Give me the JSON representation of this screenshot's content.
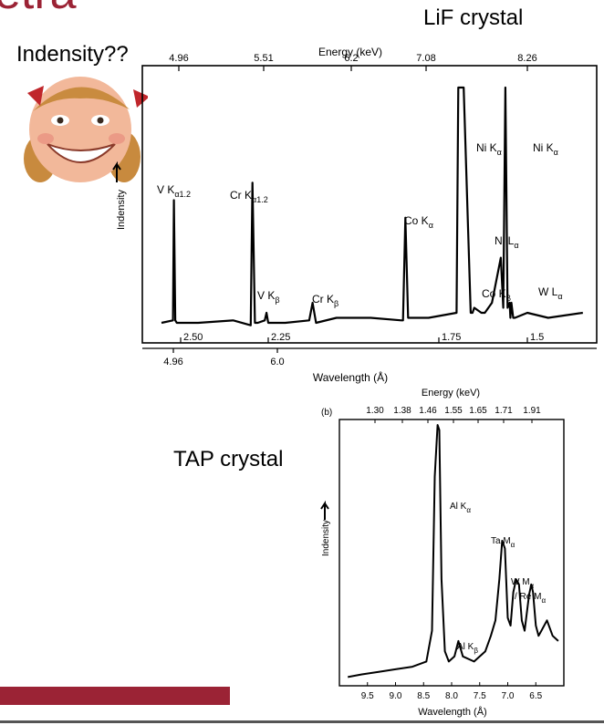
{
  "slide": {
    "title_fragment": "etra",
    "question": "Indensity??",
    "lif_label": "LiF crystal",
    "tap_label": "TAP crystal",
    "colors": {
      "accent": "#9b2335",
      "ink": "#000000"
    }
  },
  "chart_data": [
    {
      "type": "line",
      "title": "",
      "top_axis_label": "Energy (keV)",
      "top_ticks": [
        "4.96",
        "5.51",
        "6.2",
        "7.08",
        "8.26"
      ],
      "xlabel": "Wavelength (Å)",
      "bottom_ticks_inner": [
        "2.50",
        "2.25",
        "1.75",
        "1.5"
      ],
      "bottom_ticks_outer": [
        "4.96",
        "6.0"
      ],
      "ylabel": "Indensity",
      "peaks": [
        {
          "label": "V K",
          "sub": "α1.2"
        },
        {
          "label": "Cr K",
          "sub": "α1.2"
        },
        {
          "label": "V K",
          "sub": "β"
        },
        {
          "label": "Cr K",
          "sub": "β"
        },
        {
          "label": "Co K",
          "sub": "α"
        },
        {
          "label": "Ni K",
          "sub": "α"
        },
        {
          "label": "Ni K",
          "sub": "α"
        },
        {
          "label": "Ni L",
          "sub": "α"
        },
        {
          "label": "Co K",
          "sub": "β"
        },
        {
          "label": "W L",
          "sub": "α"
        }
      ],
      "series": [
        {
          "x": [
            2.6,
            2.54,
            2.535,
            2.528,
            2.52,
            2.45,
            2.35,
            2.3,
            2.295,
            2.288,
            2.28,
            2.26,
            2.255,
            2.25,
            2.2,
            2.13,
            2.12,
            2.11,
            2.05,
            1.95,
            1.86,
            1.855,
            1.848,
            1.84,
            1.78,
            1.7,
            1.695,
            1.68,
            1.66,
            1.655,
            1.65,
            1.63,
            1.62,
            1.6,
            1.575,
            1.568,
            1.562,
            1.556,
            1.55,
            1.548,
            1.545,
            1.54,
            1.535,
            1.5,
            1.47,
            1.42
          ],
          "y": [
            6,
            7,
            55,
            7,
            6,
            6,
            7,
            5,
            62,
            6,
            6,
            7,
            10,
            6,
            6,
            7,
            14,
            6,
            8,
            8,
            7,
            7,
            48,
            8,
            8,
            10,
            100,
            100,
            10,
            10,
            12,
            10,
            10,
            14,
            32,
            12,
            100,
            12,
            14,
            8,
            14,
            8,
            8,
            10,
            8,
            10
          ]
        }
      ]
    },
    {
      "type": "line",
      "title": "",
      "panel_tag": "(b)",
      "top_axis_label": "Energy (keV)",
      "top_ticks": [
        "1.30",
        "1.38",
        "1.46",
        "1.55",
        "1.65",
        "1.71",
        "1.91"
      ],
      "xlabel": "Wavelength (Å)",
      "bottom_ticks": [
        "9.5",
        "9.0",
        "8.5",
        "8.0",
        "7.5",
        "7.0",
        "6.5"
      ],
      "ylabel": "Indensity",
      "peaks": [
        {
          "label": "Al K",
          "sub": "α"
        },
        {
          "label": "Al K",
          "sub": "β"
        },
        {
          "label": "Ta M",
          "sub": "α"
        },
        {
          "label": "W M",
          "sub": "α"
        },
        {
          "label": "/ Re M",
          "sub": "α"
        }
      ],
      "series": [
        {
          "x": [
            9.85,
            9.6,
            9.3,
            9.0,
            8.7,
            8.45,
            8.35,
            8.3,
            8.25,
            8.22,
            8.18,
            8.12,
            8.05,
            7.95,
            7.88,
            7.8,
            7.6,
            7.4,
            7.3,
            7.22,
            7.15,
            7.1,
            7.05,
            7.0,
            6.95,
            6.9,
            6.85,
            6.8,
            6.75,
            6.7,
            6.62,
            6.58,
            6.55,
            6.5,
            6.45,
            6.4,
            6.3,
            6.2,
            6.1
          ],
          "y": [
            2,
            3,
            4,
            5,
            6,
            8,
            20,
            80,
            100,
            98,
            40,
            12,
            8,
            10,
            16,
            10,
            8,
            12,
            18,
            24,
            40,
            55,
            52,
            25,
            22,
            35,
            40,
            38,
            24,
            20,
            34,
            38,
            35,
            22,
            18,
            20,
            24,
            18,
            16
          ]
        }
      ]
    }
  ]
}
